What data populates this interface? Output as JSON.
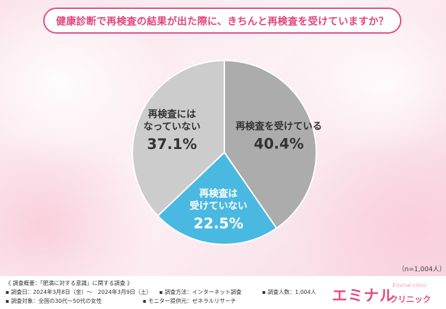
{
  "title": "健康診断で再検査の結果が出た際に、きちんと再検査を受けていますか？",
  "chart_data": {
    "type": "pie",
    "slices": [
      {
        "label_lines": [
          "再検査を受けている"
        ],
        "value": 40.4,
        "value_label": "40.4%",
        "color": "#acacac",
        "text_color": "#333333"
      },
      {
        "label_lines": [
          "再検査は",
          "受けていない"
        ],
        "value": 22.5,
        "value_label": "22.5%",
        "color": "#4ab9e2",
        "text_color": "#ffffff"
      },
      {
        "label_lines": [
          "再検査には",
          "なっていない"
        ],
        "value": 37.1,
        "value_label": "37.1%",
        "color": "#cccccc",
        "text_color": "#333333"
      }
    ]
  },
  "sample_size": "（n=1,004人）",
  "footer": {
    "line1": "《 調査概要：「肥満に対する意識」に関する調査 》",
    "survey_date": "▪ 調査日：2024年3月8日（金）～　2024年3月9日（土）",
    "survey_method": "▪ 調査方法：インターネット調査",
    "respondents": "▪ 調査人数：1,004人",
    "target": "▪ 調査対象：全国の30代～50代の女性",
    "provider": "▪ モニター提供元：ゼネラルリサーチ"
  },
  "logo": {
    "main": "エミナル",
    "sub": "クリニック",
    "small": "Eminal clinic"
  }
}
